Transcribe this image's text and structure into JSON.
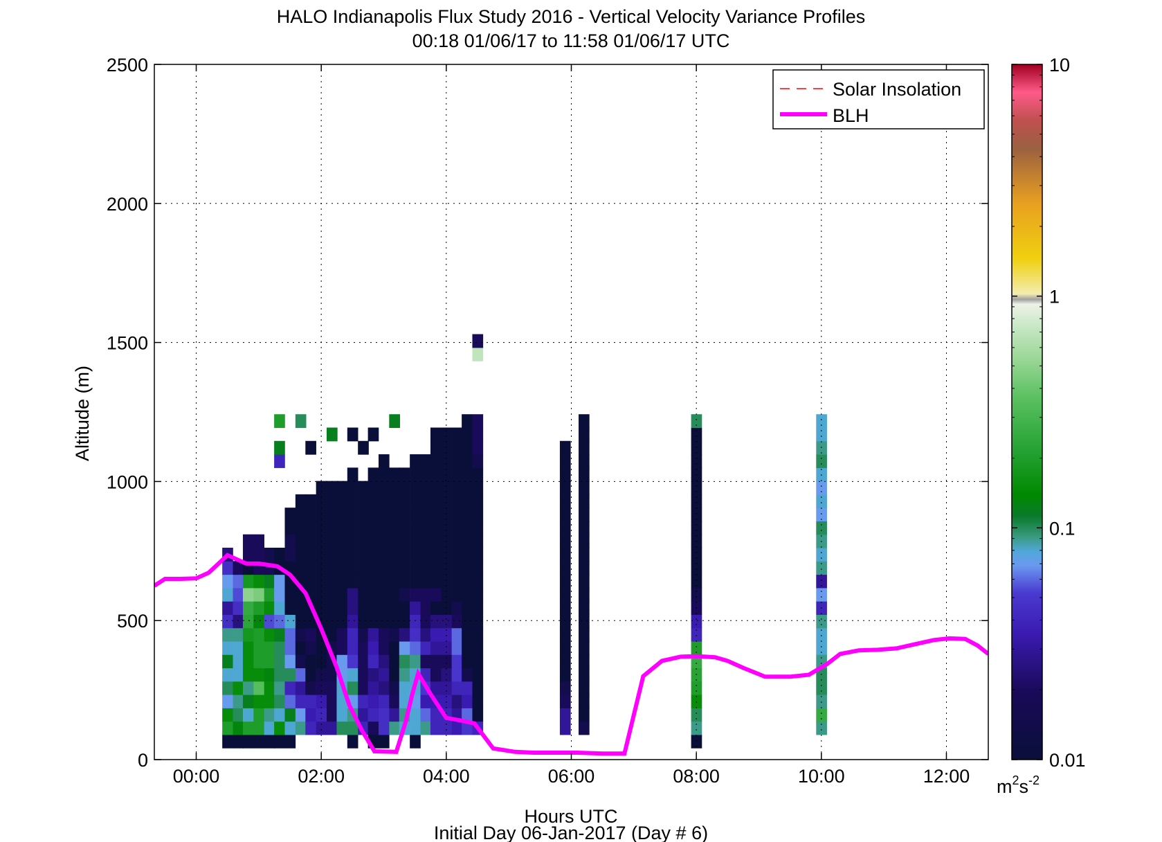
{
  "chart_data": {
    "type": "heatmap",
    "title": "HALO Indianapolis Flux Study 2016 - Vertical Velocity Variance Profiles",
    "subtitle": "00:18 01/06/17 to 11:58 01/06/17  UTC",
    "xlabel": "Hours UTC",
    "xlabel2": "Initial Day 06-Jan-2017 (Day # 6)",
    "ylabel": "Altitude (m)",
    "xlim": [
      -0.67,
      12.67
    ],
    "ylim": [
      0,
      2500
    ],
    "x_ticks": [
      0,
      2,
      4,
      6,
      8,
      10,
      12
    ],
    "x_tick_labels": [
      "00:00",
      "02:00",
      "04:00",
      "06:00",
      "08:00",
      "10:00",
      "12:00"
    ],
    "y_ticks": [
      0,
      500,
      1000,
      1500,
      2000,
      2500
    ],
    "y_tick_labels": [
      "0",
      "500",
      "1000",
      "1500",
      "2000",
      "2500"
    ],
    "grid": true,
    "legend": {
      "position": "top-right",
      "entries": [
        {
          "label": "Solar Insolation",
          "color": "#ff0000",
          "style": "dashed"
        },
        {
          "label": "BLH",
          "color": "#ff00ff",
          "style": "solid"
        }
      ]
    },
    "colorbar": {
      "scale": "log",
      "range": [
        0.01,
        10
      ],
      "tick_values": [
        0.01,
        0.1,
        1,
        10
      ],
      "tick_labels": [
        "0.01",
        "0.1",
        "1",
        "10"
      ],
      "unit_base": "m",
      "unit_sup1": "2",
      "unit_mid": "s",
      "unit_sup2": "-2"
    },
    "cell": {
      "dx_hours": 0.1667,
      "dz_m": 48
    },
    "first_column_center_hour": 0.5,
    "bottom_row_center_m": 66,
    "heatmap_legend": "Each row lists columns of a time step from its start hour; values m^2 s^-2 from the bottom altitude upward (48 m bins, first bin centred ~66 m); 0 = no data",
    "heatmap_columns": [
      {
        "t": 0.5,
        "v": [
          0.01,
          0.2,
          0.15,
          0.07,
          0.1,
          0.08,
          0.12,
          0.08,
          0.09,
          0.045,
          0.03,
          0.08,
          0.07,
          0.045,
          0.025,
          0,
          0,
          0,
          0,
          0,
          0,
          0,
          0,
          0,
          0,
          0
        ]
      },
      {
        "t": 0.67,
        "v": [
          0.01,
          0.13,
          0.1,
          0.09,
          0.15,
          0.08,
          0.08,
          0.08,
          0.09,
          0.025,
          0.045,
          0.055,
          0.06,
          0.02,
          0,
          0,
          0,
          0,
          0,
          0,
          0,
          0,
          0,
          0,
          0,
          0
        ]
      },
      {
        "t": 0.83,
        "v": [
          0.01,
          0.2,
          0.08,
          0.12,
          0.09,
          0.15,
          0.15,
          0.15,
          0.18,
          0.23,
          0.25,
          0.5,
          0.18,
          0.01,
          0.02,
          0.02,
          0,
          0,
          0,
          0,
          0,
          0,
          0,
          0,
          0,
          0
        ]
      },
      {
        "t": 1.0,
        "v": [
          0.01,
          0.2,
          0.2,
          0.15,
          0.35,
          0.15,
          0.2,
          0.2,
          0.2,
          0.13,
          0.2,
          0.45,
          0.15,
          0.02,
          0.02,
          0.02,
          0,
          0,
          0,
          0,
          0,
          0,
          0,
          0,
          0,
          0
        ]
      },
      {
        "t": 1.17,
        "v": [
          0.01,
          0.08,
          0.09,
          0.15,
          0.15,
          0.13,
          0.2,
          0.2,
          0.15,
          0.055,
          0.15,
          0.2,
          0.12,
          0.02,
          0.015,
          0,
          0,
          0,
          0,
          0,
          0,
          0,
          0,
          0,
          0,
          0
        ]
      },
      {
        "t": 1.33,
        "v": [
          0.01,
          0.15,
          0.08,
          0.1,
          0.09,
          0.1,
          0.1,
          0.1,
          0.12,
          0.06,
          0.08,
          0.07,
          0.07,
          0.01,
          0.01,
          0,
          0,
          0,
          0,
          0,
          0,
          0.04,
          0.12,
          0,
          0.2,
          0
        ]
      },
      {
        "t": 1.5,
        "v": [
          0.01,
          0.08,
          0.12,
          0.06,
          0.04,
          0.1,
          0.07,
          0.06,
          0.06,
          0.08,
          0.01,
          0.01,
          0.01,
          0.01,
          0.015,
          0.015,
          0.01,
          0.01,
          0,
          0,
          0,
          0,
          0,
          0,
          0,
          0
        ]
      },
      {
        "t": 1.67,
        "v": [
          0,
          0.09,
          0.07,
          0.04,
          0.03,
          0.06,
          0.015,
          0.01,
          0.015,
          0.01,
          0.01,
          0.01,
          0.01,
          0.01,
          0.01,
          0.01,
          0.01,
          0.01,
          0.01,
          0,
          0,
          0,
          0,
          0,
          0.1,
          0
        ]
      },
      {
        "t": 1.83,
        "v": [
          0,
          0.04,
          0.035,
          0.04,
          0.015,
          0.01,
          0.01,
          0.015,
          0.02,
          0.01,
          0.01,
          0.01,
          0.01,
          0.01,
          0.01,
          0.01,
          0.01,
          0.01,
          0.01,
          0,
          0,
          0,
          0.01,
          0,
          0,
          0
        ]
      },
      {
        "t": 2.0,
        "v": [
          0,
          0.03,
          0.04,
          0.035,
          0.02,
          0.015,
          0.01,
          0.01,
          0.01,
          0.01,
          0.01,
          0.01,
          0.01,
          0.01,
          0.01,
          0.01,
          0.01,
          0.01,
          0.01,
          0.01,
          0,
          0,
          0,
          0,
          0,
          0
        ]
      },
      {
        "t": 2.17,
        "v": [
          0,
          0.03,
          0.02,
          0.02,
          0.02,
          0.015,
          0.015,
          0.015,
          0.01,
          0.01,
          0.01,
          0.01,
          0.01,
          0.01,
          0.01,
          0.01,
          0.01,
          0.01,
          0.01,
          0.01,
          0,
          0,
          0,
          0.12,
          0,
          0
        ]
      },
      {
        "t": 2.33,
        "v": [
          0,
          0.1,
          0.08,
          0.08,
          0.08,
          0.07,
          0.07,
          0.02,
          0.02,
          0.01,
          0.01,
          0.01,
          0.01,
          0.01,
          0.01,
          0.01,
          0.01,
          0.01,
          0.01,
          0.01,
          0,
          0,
          0,
          0,
          0,
          0
        ]
      },
      {
        "t": 2.5,
        "v": [
          0.01,
          0.1,
          0.09,
          0.07,
          0.1,
          0.08,
          0.05,
          0.04,
          0.04,
          0.03,
          0.025,
          0.025,
          0.01,
          0.01,
          0.01,
          0.01,
          0.01,
          0.01,
          0.01,
          0.01,
          0.01,
          0,
          0,
          0.01,
          0,
          0
        ]
      },
      {
        "t": 2.67,
        "v": [
          0,
          0.04,
          0.03,
          0.04,
          0.02,
          0.02,
          0.02,
          0.02,
          0.015,
          0.01,
          0.01,
          0.01,
          0.01,
          0.01,
          0.01,
          0.01,
          0.01,
          0.01,
          0.01,
          0.01,
          0,
          0,
          0.01,
          0,
          0,
          0
        ]
      },
      {
        "t": 2.83,
        "v": [
          0.01,
          0.02,
          0.04,
          0.035,
          0.03,
          0.025,
          0.04,
          0.035,
          0.03,
          0.01,
          0.01,
          0.01,
          0.01,
          0.01,
          0.01,
          0.01,
          0.01,
          0.01,
          0.01,
          0.01,
          0.01,
          0,
          0,
          0.01,
          0,
          0
        ]
      },
      {
        "t": 3.0,
        "v": [
          0.01,
          0.045,
          0.045,
          0.04,
          0.025,
          0.03,
          0.025,
          0.02,
          0.02,
          0.01,
          0.01,
          0.01,
          0.01,
          0.01,
          0.01,
          0.01,
          0.01,
          0.01,
          0.01,
          0.01,
          0.01,
          0.01,
          0,
          0,
          0,
          0
        ]
      },
      {
        "t": 3.17,
        "v": [
          0,
          0.09,
          0.03,
          0.02,
          0.015,
          0.01,
          0.01,
          0.01,
          0.015,
          0.01,
          0.01,
          0.01,
          0.01,
          0.01,
          0.01,
          0.01,
          0.01,
          0.01,
          0.01,
          0.01,
          0.01,
          0,
          0,
          0,
          0.12,
          0
        ]
      },
      {
        "t": 3.33,
        "v": [
          0,
          0.08,
          0.09,
          0.08,
          0.08,
          0.09,
          0.1,
          0.07,
          0.025,
          0.01,
          0.01,
          0.015,
          0.01,
          0.01,
          0.01,
          0.01,
          0.01,
          0.01,
          0.01,
          0.01,
          0.01,
          0,
          0,
          0,
          0,
          0
        ]
      },
      {
        "t": 3.5,
        "v": [
          0.01,
          0.08,
          0.08,
          0.07,
          0.08,
          0.08,
          0.09,
          0.06,
          0.045,
          0.04,
          0.03,
          0.02,
          0.01,
          0.01,
          0.01,
          0.01,
          0.01,
          0.01,
          0.01,
          0.01,
          0.01,
          0.01,
          0,
          0,
          0,
          0
        ]
      },
      {
        "t": 3.67,
        "v": [
          0,
          0.09,
          0.06,
          0.035,
          0.05,
          0.04,
          0.02,
          0.04,
          0.025,
          0.02,
          0.02,
          0.02,
          0.01,
          0.01,
          0.01,
          0.01,
          0.01,
          0.01,
          0.01,
          0.01,
          0.01,
          0.01,
          0,
          0,
          0,
          0
        ]
      },
      {
        "t": 3.83,
        "v": [
          0,
          0.04,
          0.04,
          0.035,
          0.03,
          0.02,
          0.02,
          0.03,
          0.035,
          0.025,
          0.01,
          0.02,
          0.01,
          0.01,
          0.01,
          0.01,
          0.01,
          0.01,
          0.01,
          0.01,
          0.01,
          0.01,
          0.01,
          0.01,
          0,
          0
        ]
      },
      {
        "t": 4.0,
        "v": [
          0,
          0.04,
          0.04,
          0.035,
          0.03,
          0.025,
          0.02,
          0.03,
          0.035,
          0.025,
          0.01,
          0.01,
          0.01,
          0.01,
          0.01,
          0.01,
          0.01,
          0.01,
          0.01,
          0.01,
          0.01,
          0.01,
          0.01,
          0.01,
          0,
          0
        ]
      },
      {
        "t": 4.17,
        "v": [
          0,
          0.035,
          0.03,
          0.025,
          0.04,
          0.05,
          0.05,
          0.06,
          0.06,
          0.02,
          0.015,
          0.01,
          0.01,
          0.01,
          0.01,
          0.01,
          0.01,
          0.01,
          0.01,
          0.01,
          0.01,
          0.01,
          0.01,
          0.01,
          0,
          0
        ]
      },
      {
        "t": 4.33,
        "v": [
          0,
          0.05,
          0.06,
          0.035,
          0.04,
          0.015,
          0.01,
          0.01,
          0.01,
          0.01,
          0.01,
          0.01,
          0.01,
          0.01,
          0.01,
          0.01,
          0.01,
          0.01,
          0.01,
          0.01,
          0.01,
          0.01,
          0.01,
          0.01,
          0.01,
          0
        ]
      },
      {
        "t": 4.5,
        "v": [
          0,
          0.04,
          0.01,
          0.01,
          0.01,
          0.01,
          0.01,
          0.01,
          0.01,
          0.01,
          0.01,
          0.01,
          0.01,
          0.01,
          0.01,
          0.01,
          0.01,
          0.01,
          0.01,
          0.01,
          0.01,
          0.015,
          0.02,
          0.02,
          0.02,
          0,
          0,
          0,
          0,
          0.7,
          0.02
        ]
      },
      {
        "t": 5.9,
        "v": [
          0,
          0.03,
          0.03,
          0.02,
          0.015,
          0.01,
          0.01,
          0.01,
          0.01,
          0.01,
          0.01,
          0.01,
          0.01,
          0.01,
          0.01,
          0.01,
          0.01,
          0.01,
          0.01,
          0.01,
          0.01,
          0.01,
          0.01,
          0,
          0,
          0
        ]
      },
      {
        "t": 6.2,
        "v": [
          0,
          0.015,
          0.01,
          0.01,
          0.01,
          0.01,
          0.01,
          0.01,
          0.01,
          0.01,
          0.01,
          0.01,
          0.01,
          0.01,
          0.01,
          0.01,
          0.01,
          0.01,
          0.01,
          0.01,
          0.01,
          0.01,
          0.01,
          0.01,
          0.01,
          0
        ]
      },
      {
        "t": 8.0,
        "v": [
          0.01,
          0.09,
          0.1,
          0.15,
          0.2,
          0.22,
          0.25,
          0.2,
          0.04,
          0.035,
          0.02,
          0.015,
          0.01,
          0.01,
          0.01,
          0.01,
          0.01,
          0.01,
          0.01,
          0.01,
          0.01,
          0.01,
          0.01,
          0.01,
          0.1,
          0
        ]
      },
      {
        "t": 10.0,
        "v": [
          0,
          0.09,
          0.25,
          0.09,
          0.1,
          0.1,
          0.09,
          0.08,
          0.08,
          0.09,
          0.04,
          0.07,
          0.03,
          0.09,
          0.08,
          0.09,
          0.1,
          0.07,
          0.08,
          0.07,
          0.08,
          0.1,
          0.09,
          0.08,
          0.08,
          0
        ]
      }
    ],
    "blh_series": {
      "name": "BLH",
      "x": [
        -0.67,
        -0.5,
        -0.25,
        0,
        0.2,
        0.5,
        0.8,
        1.0,
        1.3,
        1.5,
        1.75,
        2.0,
        2.25,
        2.45,
        2.65,
        2.85,
        3.2,
        3.35,
        3.45,
        3.55,
        3.75,
        4.0,
        4.25,
        4.45,
        4.75,
        5.1,
        5.4,
        5.7,
        6.1,
        6.5,
        6.85,
        7.15,
        7.45,
        7.75,
        8.0,
        8.3,
        8.5,
        8.75,
        9.1,
        9.5,
        9.8,
        10.1,
        10.3,
        10.6,
        10.9,
        11.2,
        11.5,
        11.8,
        12.05,
        12.3,
        12.5,
        12.67
      ],
      "y": [
        625,
        650,
        650,
        652,
        672,
        735,
        705,
        705,
        695,
        665,
        598,
        470,
        330,
        195,
        105,
        30,
        28,
        135,
        230,
        310,
        235,
        150,
        140,
        130,
        40,
        28,
        25,
        25,
        25,
        22,
        22,
        300,
        355,
        370,
        372,
        368,
        355,
        330,
        298,
        298,
        305,
        345,
        380,
        393,
        395,
        400,
        415,
        430,
        436,
        434,
        410,
        380
      ]
    }
  }
}
